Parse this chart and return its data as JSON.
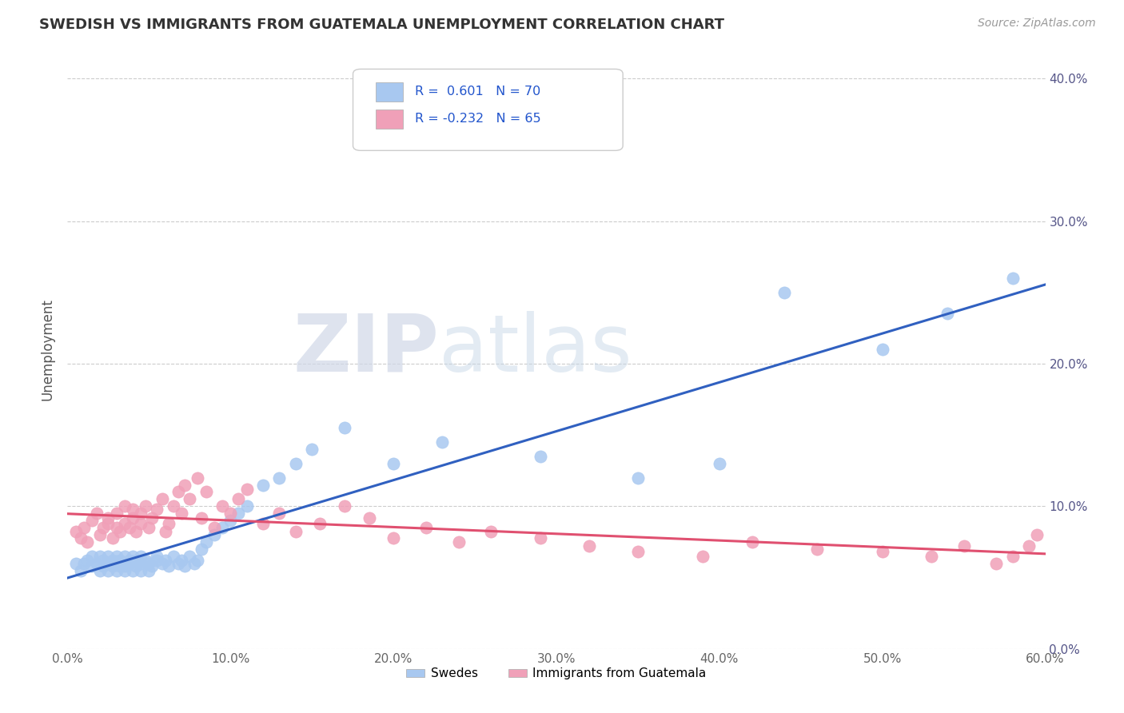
{
  "title": "SWEDISH VS IMMIGRANTS FROM GUATEMALA UNEMPLOYMENT CORRELATION CHART",
  "source": "Source: ZipAtlas.com",
  "ylabel": "Unemployment",
  "legend_label_1": "Swedes",
  "legend_label_2": "Immigrants from Guatemala",
  "R1": 0.601,
  "N1": 70,
  "R2": -0.232,
  "N2": 65,
  "color_blue": "#a8c8f0",
  "color_pink": "#f0a0b8",
  "line_color_blue": "#3060c0",
  "line_color_pink": "#e05070",
  "xlim": [
    0.0,
    0.6
  ],
  "ylim": [
    0.0,
    0.42
  ],
  "x_ticks": [
    0.0,
    0.1,
    0.2,
    0.3,
    0.4,
    0.5,
    0.6
  ],
  "y_ticks": [
    0.0,
    0.1,
    0.2,
    0.3,
    0.4
  ],
  "swedes_x": [
    0.005,
    0.008,
    0.01,
    0.012,
    0.015,
    0.015,
    0.018,
    0.02,
    0.02,
    0.022,
    0.022,
    0.025,
    0.025,
    0.025,
    0.028,
    0.028,
    0.03,
    0.03,
    0.03,
    0.032,
    0.032,
    0.035,
    0.035,
    0.035,
    0.038,
    0.038,
    0.04,
    0.04,
    0.042,
    0.042,
    0.045,
    0.045,
    0.045,
    0.048,
    0.05,
    0.05,
    0.052,
    0.055,
    0.055,
    0.058,
    0.06,
    0.062,
    0.065,
    0.068,
    0.07,
    0.072,
    0.075,
    0.078,
    0.08,
    0.082,
    0.085,
    0.09,
    0.095,
    0.1,
    0.105,
    0.11,
    0.12,
    0.13,
    0.14,
    0.15,
    0.17,
    0.2,
    0.23,
    0.29,
    0.35,
    0.4,
    0.44,
    0.5,
    0.54,
    0.58
  ],
  "swedes_y": [
    0.06,
    0.055,
    0.06,
    0.062,
    0.058,
    0.065,
    0.06,
    0.055,
    0.065,
    0.058,
    0.062,
    0.055,
    0.06,
    0.065,
    0.058,
    0.062,
    0.055,
    0.06,
    0.065,
    0.058,
    0.062,
    0.055,
    0.058,
    0.065,
    0.06,
    0.062,
    0.055,
    0.065,
    0.058,
    0.062,
    0.055,
    0.06,
    0.065,
    0.062,
    0.055,
    0.06,
    0.058,
    0.062,
    0.065,
    0.06,
    0.062,
    0.058,
    0.065,
    0.06,
    0.062,
    0.058,
    0.065,
    0.06,
    0.062,
    0.07,
    0.075,
    0.08,
    0.085,
    0.09,
    0.095,
    0.1,
    0.115,
    0.12,
    0.13,
    0.14,
    0.155,
    0.13,
    0.145,
    0.135,
    0.12,
    0.13,
    0.25,
    0.21,
    0.235,
    0.26
  ],
  "guate_x": [
    0.005,
    0.008,
    0.01,
    0.012,
    0.015,
    0.018,
    0.02,
    0.022,
    0.025,
    0.025,
    0.028,
    0.03,
    0.03,
    0.032,
    0.035,
    0.035,
    0.038,
    0.04,
    0.04,
    0.042,
    0.045,
    0.045,
    0.048,
    0.05,
    0.052,
    0.055,
    0.058,
    0.06,
    0.062,
    0.065,
    0.068,
    0.07,
    0.072,
    0.075,
    0.08,
    0.082,
    0.085,
    0.09,
    0.095,
    0.1,
    0.105,
    0.11,
    0.12,
    0.13,
    0.14,
    0.155,
    0.17,
    0.185,
    0.2,
    0.22,
    0.24,
    0.26,
    0.29,
    0.32,
    0.35,
    0.39,
    0.42,
    0.46,
    0.5,
    0.53,
    0.55,
    0.57,
    0.58,
    0.59,
    0.595
  ],
  "guate_y": [
    0.082,
    0.078,
    0.085,
    0.075,
    0.09,
    0.095,
    0.08,
    0.085,
    0.088,
    0.092,
    0.078,
    0.085,
    0.095,
    0.082,
    0.088,
    0.1,
    0.085,
    0.092,
    0.098,
    0.082,
    0.088,
    0.095,
    0.1,
    0.085,
    0.092,
    0.098,
    0.105,
    0.082,
    0.088,
    0.1,
    0.11,
    0.095,
    0.115,
    0.105,
    0.12,
    0.092,
    0.11,
    0.085,
    0.1,
    0.095,
    0.105,
    0.112,
    0.088,
    0.095,
    0.082,
    0.088,
    0.1,
    0.092,
    0.078,
    0.085,
    0.075,
    0.082,
    0.078,
    0.072,
    0.068,
    0.065,
    0.075,
    0.07,
    0.068,
    0.065,
    0.072,
    0.06,
    0.065,
    0.072,
    0.08
  ]
}
